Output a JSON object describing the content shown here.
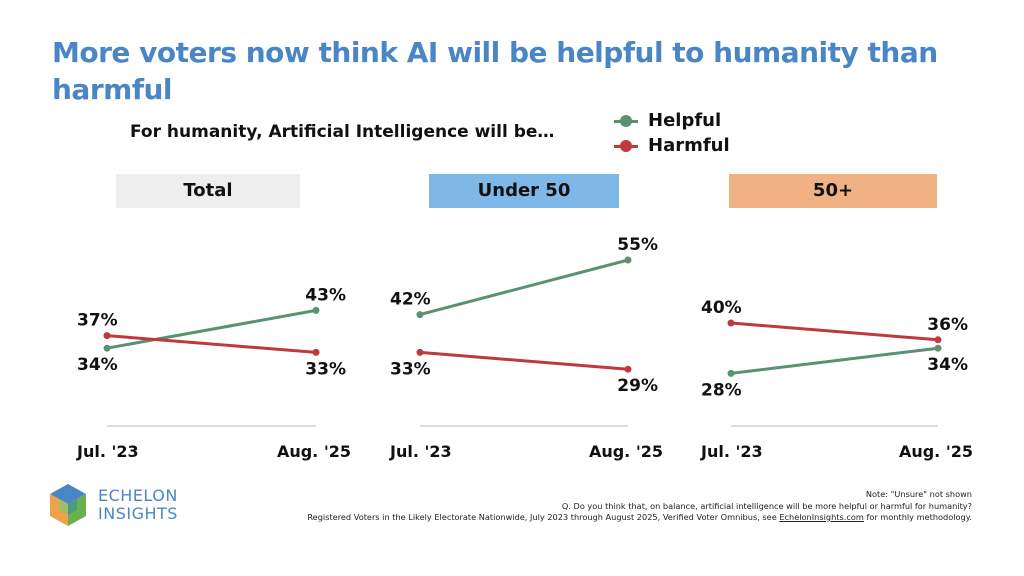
{
  "title": "More voters now think AI will be helpful to humanity than harmful",
  "subtitle": "For humanity, Artificial Intelligence will be…",
  "colors": {
    "helpful": "#5a9170",
    "harmful": "#c0393b",
    "title": "#4a86c5"
  },
  "legend": [
    {
      "label": "Helpful",
      "color": "#5a9170"
    },
    {
      "label": "Harmful",
      "color": "#c0393b"
    }
  ],
  "chart_data": [
    {
      "type": "line",
      "title": "Total",
      "header_color": "#eeeeee",
      "x": [
        "Jul. '23",
        "Aug. '25"
      ],
      "series": [
        {
          "name": "Helpful",
          "values": [
            34,
            43
          ]
        },
        {
          "name": "Harmful",
          "values": [
            37,
            33
          ]
        }
      ]
    },
    {
      "type": "line",
      "title": "Under 50",
      "header_color": "#7db8e8",
      "x": [
        "Jul. '23",
        "Aug. '25"
      ],
      "series": [
        {
          "name": "Helpful",
          "values": [
            42,
            55
          ]
        },
        {
          "name": "Harmful",
          "values": [
            33,
            29
          ]
        }
      ]
    },
    {
      "type": "line",
      "title": "50+",
      "header_color": "#f0b283",
      "x": [
        "Jul. '23",
        "Aug. '25"
      ],
      "series": [
        {
          "name": "Helpful",
          "values": [
            28,
            34
          ]
        },
        {
          "name": "Harmful",
          "values": [
            40,
            36
          ]
        }
      ]
    }
  ],
  "logo": {
    "line1": "ECHELON",
    "line2": "INSIGHTS"
  },
  "notes": {
    "line1": "Note: \"Unsure\" not shown",
    "line2": "Q. Do you think that, on balance, artificial intelligence will be more helpful or harmful for humanity?",
    "line3_prefix": "Registered Voters in the Likely Electorate Nationwide, July 2023 through August 2025, Verified Voter Omnibus, see ",
    "line3_link": "EchelonInsights.com",
    "line3_suffix": " for monthly methodology."
  }
}
